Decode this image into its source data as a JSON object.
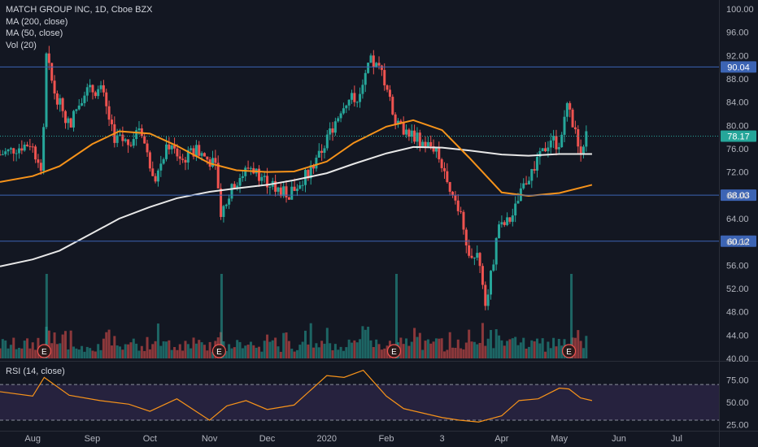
{
  "legend": {
    "symbol_line": "MATCH GROUP INC, 1D, Cboe BZX",
    "ma200_label": "MA (200, close)",
    "ma50_label": "MA (50, close)",
    "vol_label": "Vol (20)"
  },
  "rsi_legend": "RSI (14, close)",
  "earnings_marker": "E",
  "colors": {
    "background": "#131722",
    "up": "#26a69a",
    "down": "#ef5350",
    "ma200": "#e8e8e8",
    "ma50": "#f7931a",
    "hline": "#3c64b4",
    "last_price_line": "#26a69a",
    "rsi": "#f7931a",
    "rsi_band": "#7e57c2"
  },
  "chart_data": [
    {
      "type": "candlestick",
      "y_axis_ticks": [
        "100.00",
        "96.00",
        "92.00",
        "88.00",
        "84.00",
        "80.00",
        "76.00",
        "72.00",
        "68.00",
        "64.00",
        "60.00",
        "56.00",
        "52.00",
        "48.00",
        "44.00",
        "40.00"
      ],
      "ylim": [
        40,
        100
      ],
      "x_axis_ticks": [
        "Aug",
        "Sep",
        "Oct",
        "Nov",
        "Dec",
        "2020",
        "Feb",
        "3",
        "Apr",
        "May",
        "Jun",
        "Jul"
      ],
      "horizontal_lines": [
        "90.04",
        "68.03",
        "60.12"
      ],
      "last_price_label": "78.17",
      "series": [
        {
          "name": "MA (200, close)",
          "x": [
            "2019-07-15",
            "2019-08-01",
            "2019-08-15",
            "2019-09-01",
            "2019-09-15",
            "2019-10-01",
            "2019-10-15",
            "2019-11-01",
            "2019-11-15",
            "2019-12-01",
            "2019-12-15",
            "2020-01-01",
            "2020-01-15",
            "2020-02-01",
            "2020-02-15",
            "2020-03-01",
            "2020-03-15",
            "2020-04-01",
            "2020-04-15",
            "2020-05-01",
            "2020-05-18"
          ],
          "values": [
            55.8,
            57.0,
            58.5,
            61.5,
            64.0,
            66.0,
            67.5,
            68.6,
            69.2,
            69.8,
            70.6,
            71.8,
            73.4,
            75.2,
            76.3,
            76.2,
            75.7,
            75.0,
            74.8,
            75.1,
            75.1
          ]
        },
        {
          "name": "MA (50, close)",
          "x": [
            "2019-07-15",
            "2019-08-01",
            "2019-08-15",
            "2019-09-01",
            "2019-09-15",
            "2019-10-01",
            "2019-10-15",
            "2019-11-01",
            "2019-11-15",
            "2019-12-01",
            "2019-12-15",
            "2020-01-01",
            "2020-01-15",
            "2020-02-01",
            "2020-02-15",
            "2020-03-01",
            "2020-03-15",
            "2020-04-01",
            "2020-04-15",
            "2020-05-01",
            "2020-05-18"
          ],
          "values": [
            70.3,
            71.3,
            73.0,
            76.8,
            79.0,
            78.6,
            76.5,
            73.5,
            72.3,
            72.0,
            72.1,
            73.8,
            77.0,
            79.8,
            80.9,
            79.2,
            74.5,
            68.5,
            67.9,
            68.4,
            69.8
          ]
        }
      ],
      "earnings_dates": [
        "2019-08-07",
        "2019-11-06",
        "2020-02-05",
        "2020-05-06"
      ]
    },
    {
      "type": "line",
      "title": "RSI (14, close)",
      "y_axis_ticks": [
        "75.00",
        "50.00",
        "25.00"
      ],
      "ylim": [
        20,
        92
      ],
      "band": [
        30,
        70
      ],
      "x": [
        "2019-07-15",
        "2019-08-01",
        "2019-08-07",
        "2019-08-20",
        "2019-09-05",
        "2019-09-20",
        "2019-10-01",
        "2019-10-15",
        "2019-11-01",
        "2019-11-10",
        "2019-11-20",
        "2019-12-01",
        "2019-12-15",
        "2020-01-01",
        "2020-01-10",
        "2020-01-20",
        "2020-02-01",
        "2020-02-10",
        "2020-02-20",
        "2020-03-01",
        "2020-03-10",
        "2020-03-20",
        "2020-04-01",
        "2020-04-10",
        "2020-04-20",
        "2020-05-01",
        "2020-05-06",
        "2020-05-12",
        "2020-05-18"
      ],
      "values": [
        62,
        57,
        78,
        58,
        52,
        48,
        40,
        54,
        30,
        46,
        52,
        42,
        47,
        80,
        78,
        86,
        57,
        43,
        38,
        33,
        30,
        28,
        35,
        52,
        54,
        66,
        65,
        55,
        52
      ]
    }
  ]
}
